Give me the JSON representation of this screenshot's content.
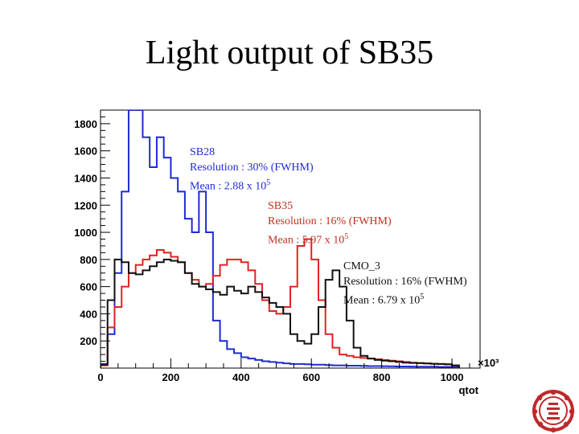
{
  "slide": {
    "title": "Light output of SB35"
  },
  "chart_data": {
    "type": "line",
    "xlabel": "qtot",
    "ylabel": "",
    "x_multiplier": "×10³",
    "xlim": [
      0,
      1080
    ],
    "ylim": [
      0,
      1900
    ],
    "x_ticks": [
      0,
      200,
      400,
      600,
      800,
      1000
    ],
    "y_ticks": [
      200,
      400,
      600,
      800,
      1000,
      1200,
      1400,
      1600,
      1800
    ],
    "bin_width": 20,
    "series": [
      {
        "name": "SB28",
        "color": "#1f2ad4",
        "annotation": [
          "SB28",
          "Resolution : 30% (FWHM)",
          "Mean : 2.88 x 10",
          "5"
        ],
        "x": [
          0,
          20,
          40,
          60,
          80,
          100,
          120,
          140,
          160,
          180,
          200,
          220,
          240,
          260,
          280,
          300,
          320,
          340,
          360,
          380,
          400,
          420,
          440,
          460,
          480,
          500,
          520,
          540,
          560,
          580,
          600,
          620,
          640,
          660,
          680,
          700,
          720,
          740,
          760,
          780,
          800,
          820,
          840,
          860,
          880,
          900,
          920,
          940,
          960,
          980,
          1000
        ],
        "values": [
          30,
          250,
          700,
          1300,
          1900,
          1900,
          1700,
          1480,
          1700,
          1550,
          1400,
          1300,
          1100,
          1000,
          1300,
          1000,
          350,
          200,
          140,
          110,
          80,
          70,
          60,
          50,
          45,
          40,
          35,
          30,
          30,
          28,
          25,
          25,
          22,
          20,
          20,
          18,
          18,
          16,
          15,
          15,
          14,
          13,
          12,
          12,
          11,
          10,
          10,
          10,
          9,
          9,
          8
        ]
      },
      {
        "name": "SB35",
        "color": "#e22222",
        "annotation": [
          "SB35",
          "Resolution : 16% (FWHM)",
          "Mean : 5.97 x 10",
          "5"
        ],
        "x": [
          0,
          20,
          40,
          60,
          80,
          100,
          120,
          140,
          160,
          180,
          200,
          220,
          240,
          260,
          280,
          300,
          320,
          340,
          360,
          380,
          400,
          420,
          440,
          460,
          480,
          500,
          520,
          540,
          560,
          580,
          600,
          620,
          640,
          660,
          680,
          700,
          720,
          740,
          760,
          780,
          800,
          820,
          840,
          860,
          880,
          900,
          920,
          940,
          960,
          980,
          1000
        ],
        "values": [
          20,
          300,
          450,
          600,
          700,
          760,
          800,
          830,
          870,
          850,
          820,
          780,
          700,
          650,
          600,
          620,
          680,
          760,
          800,
          800,
          780,
          720,
          620,
          500,
          420,
          400,
          450,
          600,
          900,
          950,
          800,
          500,
          250,
          150,
          100,
          90,
          80,
          75,
          70,
          65,
          60,
          55,
          50,
          45,
          40,
          38,
          35,
          32,
          30,
          28,
          20
        ]
      },
      {
        "name": "CMO_3",
        "color": "#111111",
        "annotation": [
          "CMO_3",
          "Resolution : 16% (FWHM)",
          "Mean : 6.79 x 10",
          "5"
        ],
        "x": [
          0,
          20,
          40,
          60,
          80,
          100,
          120,
          140,
          160,
          180,
          200,
          220,
          240,
          260,
          280,
          300,
          320,
          340,
          360,
          380,
          400,
          420,
          440,
          460,
          480,
          500,
          520,
          540,
          560,
          580,
          600,
          620,
          640,
          660,
          680,
          700,
          720,
          740,
          760,
          780,
          800,
          820,
          840,
          860,
          880,
          900,
          920,
          940,
          960,
          980,
          1000
        ],
        "values": [
          25,
          500,
          800,
          780,
          700,
          690,
          720,
          750,
          780,
          800,
          790,
          780,
          700,
          620,
          600,
          580,
          560,
          540,
          600,
          570,
          550,
          600,
          560,
          520,
          480,
          450,
          400,
          250,
          200,
          180,
          250,
          450,
          650,
          720,
          600,
          350,
          150,
          90,
          70,
          60,
          55,
          50,
          45,
          40,
          38,
          36,
          34,
          32,
          30,
          28,
          20
        ]
      }
    ]
  }
}
